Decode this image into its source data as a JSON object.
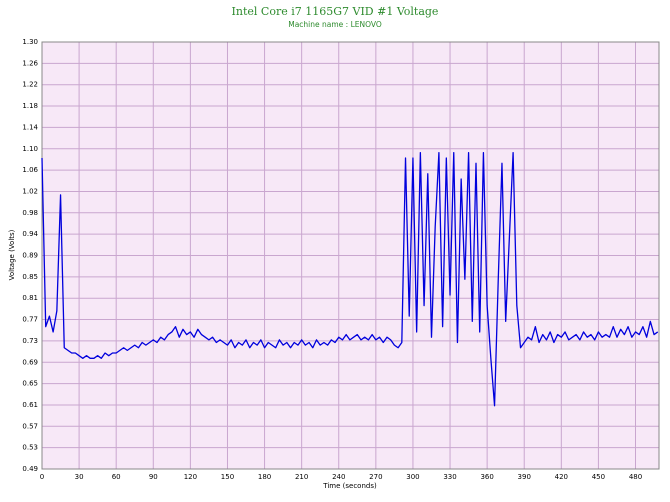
{
  "chart_data": {
    "type": "line",
    "title": "Intel Core i7 1165G7 VID #1 Voltage",
    "subtitle": "Machine name : LENOVO",
    "x_label": "Time (seconds)",
    "y_label": "Voltage (Volts)",
    "color": "#0000dd",
    "grid": true,
    "xlim": [
      0,
      499
    ],
    "xticks": [
      0,
      30,
      60,
      90,
      120,
      150,
      180,
      210,
      240,
      270,
      300,
      330,
      360,
      390,
      420,
      450,
      480
    ],
    "ylim": [
      0.49,
      1.3
    ],
    "yticks": [
      {
        "value": 0.49,
        "label": "0.49"
      },
      {
        "value": 0.5305,
        "label": "0.53"
      },
      {
        "value": 0.571,
        "label": "0.57"
      },
      {
        "value": 0.6115,
        "label": "0.61"
      },
      {
        "value": 0.652,
        "label": "0.65"
      },
      {
        "value": 0.6925,
        "label": "0.69"
      },
      {
        "value": 0.733,
        "label": "0.73"
      },
      {
        "value": 0.7735,
        "label": "0.77"
      },
      {
        "value": 0.814,
        "label": "0.81"
      },
      {
        "value": 0.8545,
        "label": "0.85"
      },
      {
        "value": 0.895,
        "label": "0.89"
      },
      {
        "value": 0.9355,
        "label": "0.94"
      },
      {
        "value": 0.976,
        "label": "0.98"
      },
      {
        "value": 1.0165,
        "label": "1.02"
      },
      {
        "value": 1.057,
        "label": "1.06"
      },
      {
        "value": 1.0975,
        "label": "1.10"
      },
      {
        "value": 1.138,
        "label": "1.14"
      },
      {
        "value": 1.1785,
        "label": "1.18"
      },
      {
        "value": 1.219,
        "label": "1.22"
      },
      {
        "value": 1.2595,
        "label": "1.26"
      },
      {
        "value": 1.3,
        "label": "1.30"
      }
    ],
    "x": [
      0,
      3,
      6,
      9,
      12,
      15,
      18,
      21,
      24,
      27,
      30,
      33,
      36,
      39,
      42,
      45,
      48,
      51,
      54,
      57,
      60,
      63,
      66,
      69,
      72,
      75,
      78,
      81,
      84,
      87,
      90,
      93,
      96,
      99,
      102,
      105,
      108,
      111,
      114,
      117,
      120,
      123,
      126,
      129,
      132,
      135,
      138,
      141,
      144,
      147,
      150,
      153,
      156,
      159,
      162,
      165,
      168,
      171,
      174,
      177,
      180,
      183,
      186,
      189,
      192,
      195,
      198,
      201,
      204,
      207,
      210,
      213,
      216,
      219,
      222,
      225,
      228,
      231,
      234,
      237,
      240,
      243,
      246,
      249,
      252,
      255,
      258,
      261,
      264,
      267,
      270,
      273,
      276,
      279,
      282,
      285,
      288,
      291,
      294,
      297,
      300,
      303,
      306,
      309,
      312,
      315,
      318,
      321,
      324,
      327,
      330,
      333,
      336,
      339,
      342,
      345,
      348,
      351,
      354,
      357,
      360,
      363,
      366,
      369,
      372,
      375,
      378,
      381,
      384,
      387,
      390,
      393,
      396,
      399,
      402,
      405,
      408,
      411,
      414,
      417,
      420,
      423,
      426,
      429,
      432,
      435,
      438,
      441,
      444,
      447,
      450,
      453,
      456,
      459,
      462,
      465,
      468,
      471,
      474,
      477,
      480,
      483,
      486,
      489,
      492,
      495,
      498
    ],
    "values": [
      1.08,
      0.76,
      0.78,
      0.75,
      0.79,
      1.01,
      0.72,
      0.715,
      0.71,
      0.71,
      0.705,
      0.7,
      0.705,
      0.7,
      0.7,
      0.705,
      0.7,
      0.71,
      0.705,
      0.71,
      0.71,
      0.715,
      0.72,
      0.715,
      0.72,
      0.725,
      0.72,
      0.73,
      0.725,
      0.73,
      0.735,
      0.73,
      0.74,
      0.735,
      0.745,
      0.75,
      0.76,
      0.74,
      0.755,
      0.745,
      0.75,
      0.74,
      0.755,
      0.745,
      0.74,
      0.735,
      0.74,
      0.73,
      0.735,
      0.73,
      0.725,
      0.735,
      0.72,
      0.73,
      0.725,
      0.735,
      0.72,
      0.73,
      0.725,
      0.735,
      0.72,
      0.73,
      0.725,
      0.72,
      0.735,
      0.725,
      0.73,
      0.72,
      0.73,
      0.725,
      0.735,
      0.725,
      0.73,
      0.72,
      0.735,
      0.725,
      0.73,
      0.725,
      0.735,
      0.73,
      0.74,
      0.735,
      0.745,
      0.735,
      0.74,
      0.745,
      0.735,
      0.74,
      0.735,
      0.745,
      0.735,
      0.74,
      0.73,
      0.74,
      0.735,
      0.725,
      0.72,
      0.73,
      1.08,
      0.78,
      1.08,
      0.75,
      1.09,
      0.8,
      1.05,
      0.74,
      0.95,
      1.09,
      0.76,
      1.08,
      0.82,
      1.09,
      0.73,
      1.04,
      0.85,
      1.09,
      0.77,
      1.07,
      0.75,
      1.09,
      0.8,
      0.7,
      0.61,
      0.85,
      1.07,
      0.77,
      0.93,
      1.09,
      0.8,
      0.72,
      0.73,
      0.74,
      0.735,
      0.76,
      0.73,
      0.745,
      0.735,
      0.75,
      0.73,
      0.745,
      0.74,
      0.75,
      0.735,
      0.74,
      0.745,
      0.735,
      0.75,
      0.74,
      0.745,
      0.735,
      0.75,
      0.74,
      0.745,
      0.74,
      0.76,
      0.74,
      0.755,
      0.745,
      0.76,
      0.74,
      0.75,
      0.745,
      0.76,
      0.74,
      0.77,
      0.745,
      0.75
    ]
  }
}
